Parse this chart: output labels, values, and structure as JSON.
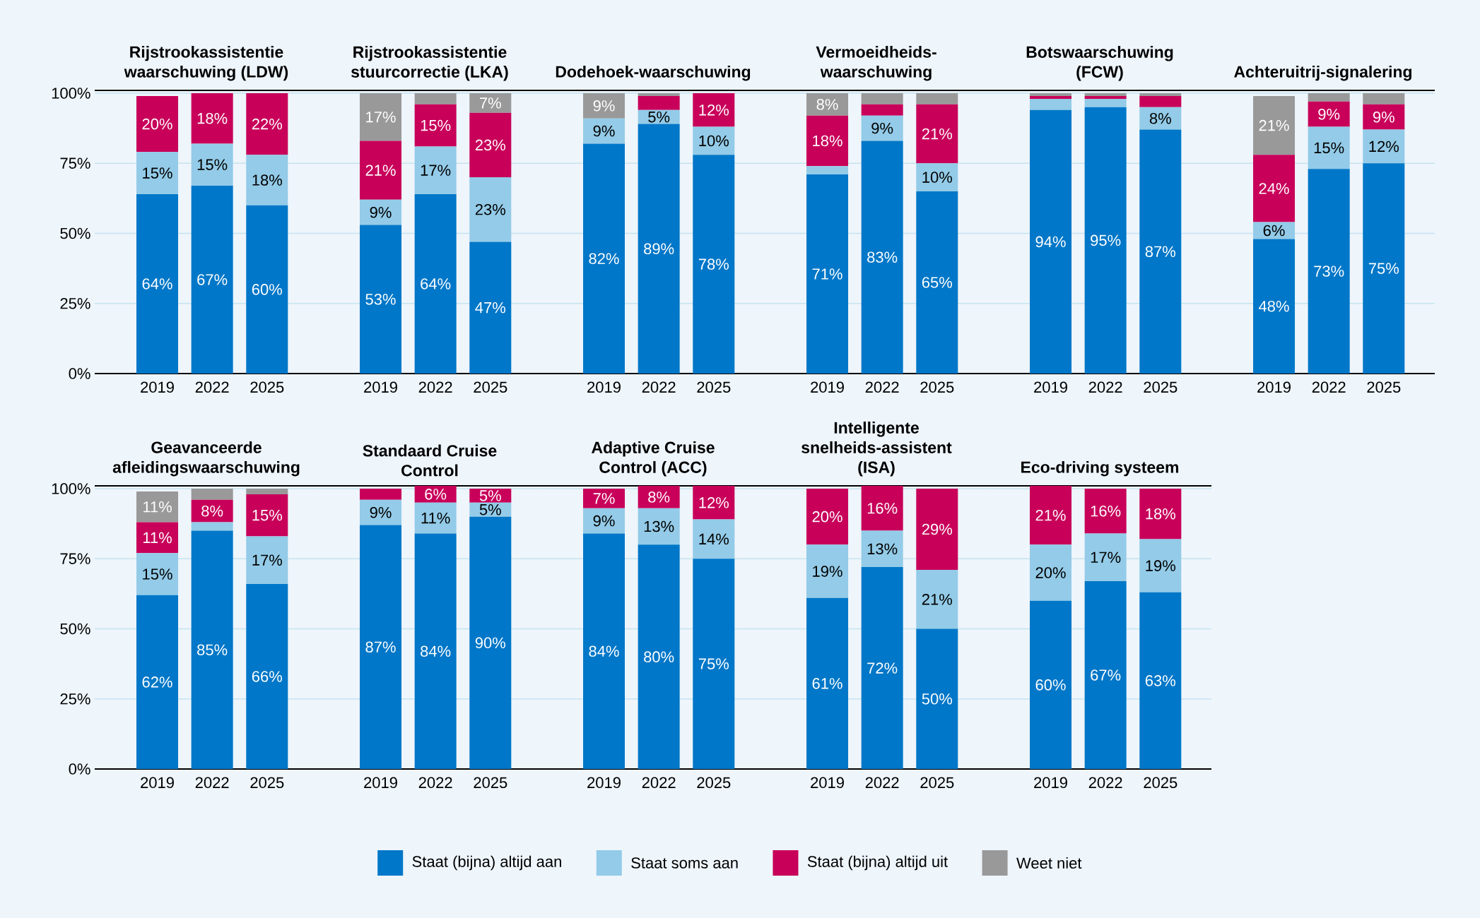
{
  "chart_data": [
    {
      "type": "bar",
      "stacked": true,
      "title": "Rijstrookassistentie waarschuwing (LDW)",
      "categories": [
        "2019",
        "2022",
        "2025"
      ],
      "ylim": [
        0,
        101
      ],
      "yticks": [
        {
          "value": 0,
          "label": "0%"
        },
        {
          "value": 25,
          "label": "25%"
        },
        {
          "value": 50,
          "label": "50%"
        },
        {
          "value": 75,
          "label": "75%"
        },
        {
          "value": 100,
          "label": "100%"
        }
      ],
      "grid": "y",
      "series": [
        {
          "color": "#0077c8",
          "values": [
            64,
            67,
            60
          ],
          "value_labels": [
            "64%",
            "67%",
            "60%"
          ]
        },
        {
          "color": "#93cbe8",
          "values": [
            15,
            15,
            18
          ],
          "value_labels": [
            "15%",
            "15%",
            "18%"
          ]
        },
        {
          "color": "#c8005a",
          "values": [
            20,
            18,
            22
          ],
          "value_labels": [
            "20%",
            "18%",
            "22%"
          ]
        }
      ]
    },
    {
      "type": "bar",
      "stacked": true,
      "title": "Rijstrookassistentie stuurcorrectie (LKA)",
      "categories": [
        "2019",
        "2022",
        "2025"
      ],
      "ylim": [
        0,
        101
      ],
      "yticks": [
        0,
        25,
        50,
        75,
        100
      ],
      "tick_labels": "x",
      "grid": "y",
      "series": [
        {
          "color": "#0077c8",
          "values": [
            53,
            64,
            47
          ],
          "value_labels": [
            "53%",
            "64%",
            "47%"
          ]
        },
        {
          "color": "#93cbe8",
          "values": [
            9,
            17,
            23
          ],
          "value_labels": [
            "9%",
            "17%",
            "23%"
          ]
        },
        {
          "color": "#c8005a",
          "values": [
            21,
            15,
            23
          ],
          "value_labels": [
            "21%",
            "15%",
            "23%"
          ]
        },
        {
          "color": "#999999",
          "values": [
            17,
            4,
            7
          ],
          "value_labels": [
            "17%",
            null,
            "7%"
          ]
        }
      ]
    },
    {
      "type": "bar",
      "stacked": true,
      "title": "Dodehoek-waarschuwing",
      "categories": [
        "2019",
        "2022",
        "2025"
      ],
      "ylim": [
        0,
        101
      ],
      "yticks": [
        0,
        25,
        50,
        75,
        100
      ],
      "tick_labels": "x",
      "grid": "y",
      "series": [
        {
          "color": "#0077c8",
          "values": [
            82,
            89,
            78
          ],
          "value_labels": [
            "82%",
            "89%",
            "78%"
          ]
        },
        {
          "color": "#93cbe8",
          "values": [
            9,
            5,
            10
          ],
          "value_labels": [
            "9%",
            "5%",
            "10%"
          ]
        },
        {
          "color": "#c8005a",
          "values": [
            0,
            5,
            12
          ],
          "value_labels": [
            null,
            null,
            "12%"
          ]
        },
        {
          "color": "#999999",
          "values": [
            9,
            1,
            0
          ],
          "value_labels": [
            "9%",
            null,
            null
          ]
        }
      ]
    },
    {
      "type": "bar",
      "stacked": true,
      "title": "Vermoeidheids-waarschuwing",
      "categories": [
        "2019",
        "2022",
        "2025"
      ],
      "ylim": [
        0,
        101
      ],
      "yticks": [
        0,
        25,
        50,
        75,
        100
      ],
      "tick_labels": "x",
      "grid": "y",
      "series": [
        {
          "color": "#0077c8",
          "values": [
            71,
            83,
            65
          ],
          "value_labels": [
            "71%",
            "83%",
            "65%"
          ]
        },
        {
          "color": "#93cbe8",
          "values": [
            3,
            9,
            10
          ],
          "value_labels": [
            null,
            "9%",
            "10%"
          ]
        },
        {
          "color": "#c8005a",
          "values": [
            18,
            4,
            21
          ],
          "value_labels": [
            "18%",
            null,
            "21%"
          ]
        },
        {
          "color": "#999999",
          "values": [
            8,
            4,
            4
          ],
          "value_labels": [
            "8%",
            null,
            null
          ]
        }
      ]
    },
    {
      "type": "bar",
      "stacked": true,
      "title": "Botswaarschuwing (FCW)",
      "categories": [
        "2019",
        "2022",
        "2025"
      ],
      "ylim": [
        0,
        101
      ],
      "yticks": [
        0,
        25,
        50,
        75,
        100
      ],
      "tick_labels": "x",
      "grid": "y",
      "series": [
        {
          "color": "#0077c8",
          "values": [
            94,
            95,
            87
          ],
          "value_labels": [
            "94%",
            "95%",
            "87%"
          ]
        },
        {
          "color": "#93cbe8",
          "values": [
            4,
            3,
            8
          ],
          "value_labels": [
            null,
            null,
            "8%"
          ]
        },
        {
          "color": "#c8005a",
          "values": [
            1,
            1,
            4
          ],
          "value_labels": [
            null,
            null,
            null
          ]
        },
        {
          "color": "#999999",
          "values": [
            1,
            1,
            1
          ],
          "value_labels": [
            null,
            null,
            null
          ]
        }
      ]
    },
    {
      "type": "bar",
      "stacked": true,
      "title": "Achteruitrij-signalering",
      "categories": [
        "2019",
        "2022",
        "2025"
      ],
      "ylim": [
        0,
        101
      ],
      "yticks": [
        0,
        25,
        50,
        75,
        100
      ],
      "tick_labels": "x",
      "grid": "y",
      "series": [
        {
          "color": "#0077c8",
          "values": [
            48,
            73,
            75
          ],
          "value_labels": [
            "48%",
            "73%",
            "75%"
          ]
        },
        {
          "color": "#93cbe8",
          "values": [
            6,
            15,
            12
          ],
          "value_labels": [
            "6%",
            "15%",
            "12%"
          ]
        },
        {
          "color": "#c8005a",
          "values": [
            24,
            9,
            9
          ],
          "value_labels": [
            "24%",
            "9%",
            "9%"
          ]
        },
        {
          "color": "#999999",
          "values": [
            21,
            3,
            4
          ],
          "value_labels": [
            "21%",
            null,
            null
          ]
        }
      ]
    },
    {
      "type": "bar",
      "stacked": true,
      "title": "Geavanceerde afleidingswaarschuwing",
      "categories": [
        "2019",
        "2022",
        "2025"
      ],
      "ylim": [
        0,
        101
      ],
      "yticks": [
        {
          "value": 0,
          "label": "0%"
        },
        {
          "value": 25,
          "label": "25%"
        },
        {
          "value": 50,
          "label": "50%"
        },
        {
          "value": 75,
          "label": "75%"
        },
        {
          "value": 100,
          "label": "100%"
        }
      ],
      "grid": "y",
      "legend": "bottom",
      "series": [
        {
          "name": "Staat (bijna) altijd aan",
          "color": "#0077c8",
          "values": [
            62,
            85,
            66
          ],
          "value_labels": [
            "62%",
            "85%",
            "66%"
          ]
        },
        {
          "name": "Staat soms aan",
          "color": "#93cbe8",
          "values": [
            15,
            3,
            17
          ],
          "value_labels": [
            "15%",
            null,
            "17%"
          ]
        },
        {
          "name": "Staat (bijna) altijd uit",
          "color": "#c8005a",
          "values": [
            11,
            8,
            15
          ],
          "value_labels": [
            "11%",
            "8%",
            "15%"
          ]
        },
        {
          "name": "Weet niet",
          "color": "#999999",
          "values": [
            11,
            4,
            2
          ],
          "value_labels": [
            "11%",
            null,
            null
          ]
        }
      ]
    },
    {
      "type": "bar",
      "stacked": true,
      "title": "Standaard Cruise Control",
      "categories": [
        "2019",
        "2022",
        "2025"
      ],
      "ylim": [
        0,
        101
      ],
      "yticks": [
        0,
        25,
        50,
        75,
        100
      ],
      "tick_labels": "x",
      "grid": "y",
      "series": [
        {
          "color": "#0077c8",
          "values": [
            87,
            84,
            90
          ],
          "value_labels": [
            "87%",
            "84%",
            "90%"
          ]
        },
        {
          "color": "#93cbe8",
          "values": [
            9,
            11,
            5
          ],
          "value_labels": [
            "9%",
            "11%",
            "5%"
          ]
        },
        {
          "color": "#c8005a",
          "values": [
            4,
            6,
            5
          ],
          "value_labels": [
            null,
            "6%",
            "5%"
          ]
        }
      ]
    },
    {
      "type": "bar",
      "stacked": true,
      "title": "Adaptive Cruise Control (ACC)",
      "categories": [
        "2019",
        "2022",
        "2025"
      ],
      "ylim": [
        0,
        101
      ],
      "yticks": [
        0,
        25,
        50,
        75,
        100
      ],
      "tick_labels": "x",
      "grid": "y",
      "series": [
        {
          "color": "#0077c8",
          "values": [
            84,
            80,
            75
          ],
          "value_labels": [
            "84%",
            "80%",
            "75%"
          ]
        },
        {
          "color": "#93cbe8",
          "values": [
            9,
            13,
            14
          ],
          "value_labels": [
            "9%",
            "13%",
            "14%"
          ]
        },
        {
          "color": "#c8005a",
          "values": [
            7,
            8,
            12
          ],
          "value_labels": [
            "7%",
            "8%",
            "12%"
          ]
        }
      ]
    },
    {
      "type": "bar",
      "stacked": true,
      "title": "Intelligente snelheids-assistent (ISA)",
      "categories": [
        "2019",
        "2022",
        "2025"
      ],
      "ylim": [
        0,
        101
      ],
      "yticks": [
        0,
        25,
        50,
        75,
        100
      ],
      "tick_labels": "x",
      "grid": "y",
      "series": [
        {
          "color": "#0077c8",
          "values": [
            61,
            72,
            50
          ],
          "value_labels": [
            "61%",
            "72%",
            "50%"
          ]
        },
        {
          "color": "#93cbe8",
          "values": [
            19,
            13,
            21
          ],
          "value_labels": [
            "19%",
            "13%",
            "21%"
          ]
        },
        {
          "color": "#c8005a",
          "values": [
            20,
            16,
            29
          ],
          "value_labels": [
            "20%",
            "16%",
            "29%"
          ]
        }
      ]
    },
    {
      "type": "bar",
      "stacked": true,
      "title": "Eco-driving systeem",
      "categories": [
        "2019",
        "2022",
        "2025"
      ],
      "ylim": [
        0,
        101
      ],
      "yticks": [
        0,
        25,
        50,
        75,
        100
      ],
      "tick_labels": "x",
      "grid": "y",
      "series": [
        {
          "color": "#0077c8",
          "values": [
            60,
            67,
            63
          ],
          "value_labels": [
            "60%",
            "67%",
            "63%"
          ]
        },
        {
          "color": "#93cbe8",
          "values": [
            20,
            17,
            19
          ],
          "value_labels": [
            "20%",
            "17%",
            "19%"
          ]
        },
        {
          "color": "#c8005a",
          "values": [
            21,
            16,
            18
          ],
          "value_labels": [
            "21%",
            "16%",
            "18%"
          ]
        }
      ]
    }
  ]
}
